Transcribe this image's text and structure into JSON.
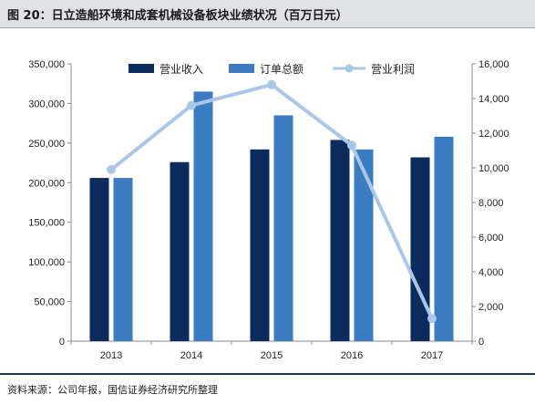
{
  "figure": {
    "title": "图 20：日立造船环境和成套机械设备板块业绩状况（百万日元）",
    "source": "资料来源：公司年报，国信证券经济研究所整理"
  },
  "chart_data": {
    "type": "bar",
    "categories": [
      "2013",
      "2014",
      "2015",
      "2016",
      "2017"
    ],
    "series": [
      {
        "name": "营业收入",
        "kind": "bar",
        "axis": "left",
        "color": "#0b2c5c",
        "values": [
          206000,
          226000,
          242000,
          254000,
          232000
        ]
      },
      {
        "name": "订单总额",
        "kind": "bar",
        "axis": "left",
        "color": "#3b7bc2",
        "values": [
          206000,
          315000,
          285000,
          242000,
          258000
        ]
      },
      {
        "name": "营业利润",
        "kind": "line",
        "axis": "right",
        "color": "#a9c7e8",
        "values": [
          9900,
          13600,
          14800,
          11300,
          1300
        ]
      }
    ],
    "left_axis": {
      "ylim": [
        0,
        350000
      ],
      "ticks": [
        0,
        50000,
        100000,
        150000,
        200000,
        250000,
        300000,
        350000
      ],
      "tick_labels": [
        "0",
        "50,000",
        "100,000",
        "150,000",
        "200,000",
        "250,000",
        "300,000",
        "350,000"
      ]
    },
    "right_axis": {
      "ylim": [
        0,
        16000
      ],
      "ticks": [
        0,
        2000,
        4000,
        6000,
        8000,
        10000,
        12000,
        14000,
        16000
      ],
      "tick_labels": [
        "0",
        "2,000",
        "4,000",
        "6,000",
        "8,000",
        "10,000",
        "12,000",
        "14,000",
        "16,000"
      ]
    },
    "grid": false,
    "legend_position": "top"
  }
}
